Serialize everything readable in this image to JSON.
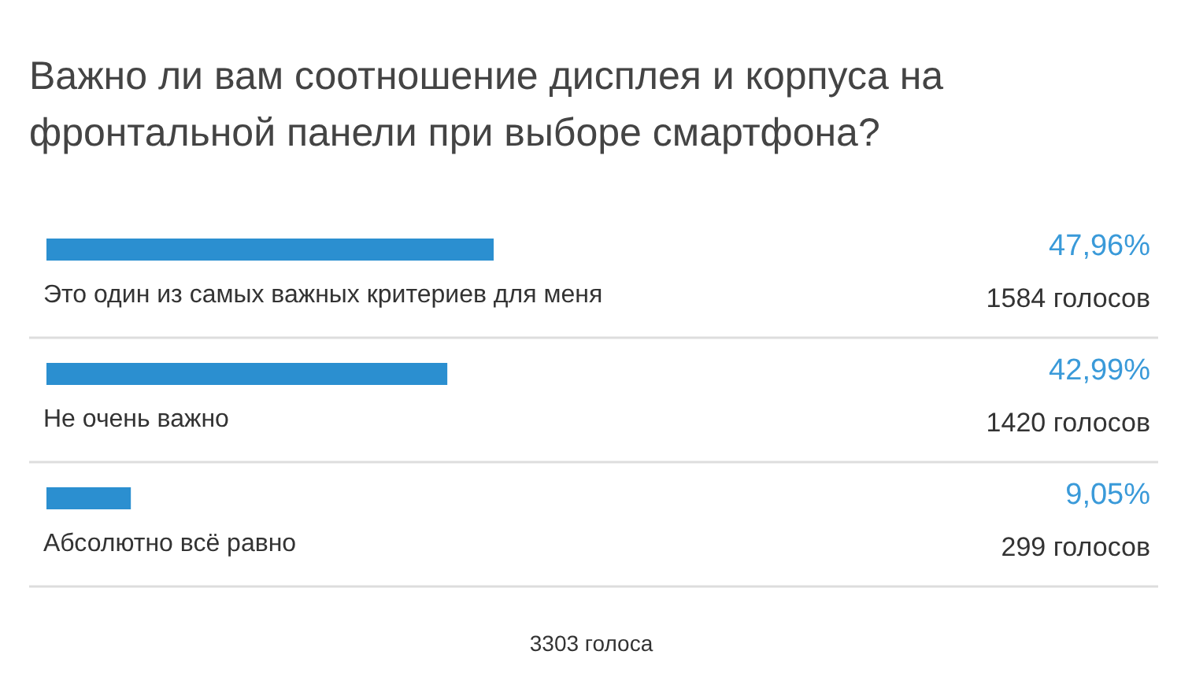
{
  "chart_data": {
    "type": "bar",
    "orientation": "horizontal",
    "title": "Важно ли вам соотношение дисплея и корпуса на фронтальной панели при выборе смартфона?",
    "categories": [
      "Это один из самых важных критериев для меня",
      "Не очень важно",
      "Абсолютно всё равно"
    ],
    "values": [
      47.96,
      42.99,
      9.05
    ],
    "value_labels": [
      "47,96%",
      "42,99%",
      "9,05%"
    ],
    "color": "#2b8fd0",
    "tick_labels": false,
    "grid": false,
    "annotations": [
      "1584 голосов",
      "1420 голосов",
      "299 голосов",
      "3303 голоса"
    ]
  }
}
